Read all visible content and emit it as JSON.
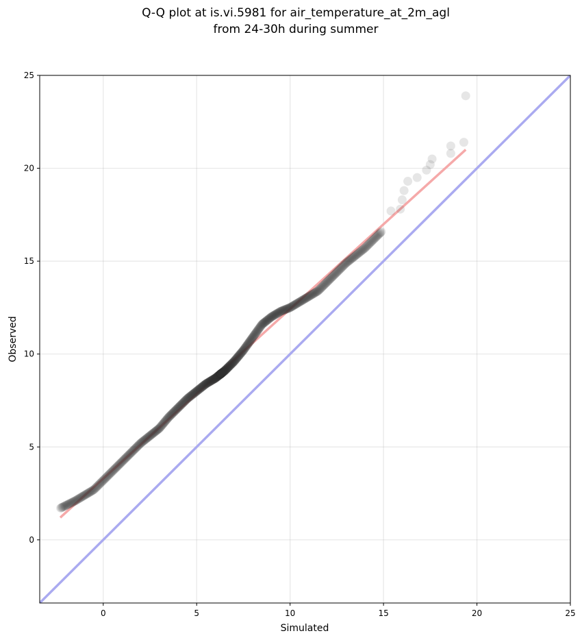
{
  "chart_data": {
    "type": "scatter",
    "title_lines": [
      "Q-Q plot at is.vi.5981 for air_temperature_at_2m_agl",
      "from 24-30h during summer"
    ],
    "xlabel": "Simulated",
    "ylabel": "Observed",
    "xlim": [
      -3.4,
      25
    ],
    "ylim": [
      -3.4,
      25
    ],
    "xticks": [
      0,
      5,
      10,
      15,
      20,
      25
    ],
    "yticks": [
      0,
      5,
      10,
      15,
      20,
      25
    ],
    "grid": true,
    "reference_line": {
      "name": "1:1",
      "color": "#aaaaf0",
      "x": [
        -3.4,
        25
      ],
      "y": [
        -3.4,
        25
      ]
    },
    "fit_line": {
      "color": "#f4a0a0",
      "x": [
        -2.3,
        19.4
      ],
      "y": [
        1.2,
        21.0
      ]
    },
    "point_color": "#333333",
    "quantile_anchors": {
      "x": [
        -2.3,
        -1.5,
        -0.5,
        0.0,
        0.5,
        1.0,
        1.5,
        2.0,
        2.5,
        3.0,
        3.5,
        4.0,
        4.5,
        5.0,
        5.5,
        6.0,
        6.5,
        7.0,
        7.5,
        8.0,
        8.5,
        9.0,
        9.5,
        10.0,
        10.5,
        11.0,
        11.5,
        12.0,
        12.5,
        13.0,
        13.5,
        14.0,
        14.5,
        15.0
      ],
      "y": [
        1.7,
        2.1,
        2.7,
        3.2,
        3.7,
        4.2,
        4.7,
        5.2,
        5.6,
        6.0,
        6.6,
        7.1,
        7.6,
        8.0,
        8.4,
        8.7,
        9.1,
        9.6,
        10.2,
        10.9,
        11.6,
        12.0,
        12.3,
        12.5,
        12.8,
        13.1,
        13.4,
        13.9,
        14.4,
        14.9,
        15.3,
        15.7,
        16.2,
        16.7
      ]
    },
    "upper_tail_points": [
      {
        "x": 15.4,
        "y": 17.7
      },
      {
        "x": 15.9,
        "y": 17.8
      },
      {
        "x": 16.0,
        "y": 18.3
      },
      {
        "x": 16.1,
        "y": 18.8
      },
      {
        "x": 16.3,
        "y": 19.3
      },
      {
        "x": 16.8,
        "y": 19.5
      },
      {
        "x": 17.3,
        "y": 19.9
      },
      {
        "x": 17.5,
        "y": 20.2
      },
      {
        "x": 17.6,
        "y": 20.5
      },
      {
        "x": 18.6,
        "y": 20.8
      },
      {
        "x": 18.6,
        "y": 21.2
      },
      {
        "x": 19.3,
        "y": 21.4
      },
      {
        "x": 19.4,
        "y": 23.9
      }
    ]
  }
}
